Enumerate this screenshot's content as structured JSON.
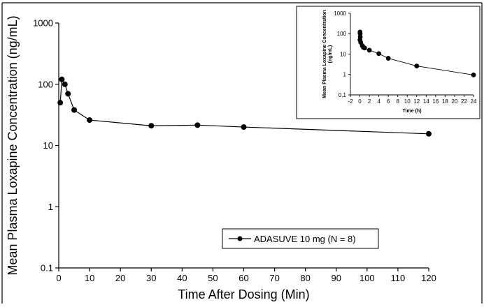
{
  "chart_data": [
    {
      "type": "line",
      "title": "",
      "xlabel": "Time After Dosing (Min)",
      "ylabel": "Mean Plasma Loxapine Concentration (ng/mL)",
      "xlim": [
        0,
        120
      ],
      "xticks": [
        0,
        10,
        20,
        30,
        40,
        50,
        60,
        70,
        80,
        90,
        100,
        110,
        120
      ],
      "ylim": [
        0.1,
        1000
      ],
      "yscale": "log",
      "yticks": [
        0.1,
        1,
        10,
        100,
        1000
      ],
      "ytick_labels": [
        "0.1",
        "1",
        "10",
        "100",
        "1000"
      ],
      "grid": false,
      "legend_position": "center-right",
      "series": [
        {
          "name": "ADASUVE 10 mg (N = 8)",
          "x": [
            0.5,
            1,
            2,
            3,
            5,
            10,
            30,
            45,
            60,
            120
          ],
          "y": [
            50,
            120,
            100,
            70,
            38,
            26,
            21,
            21.5,
            20,
            15.5
          ],
          "color": "#000000",
          "marker": "circle"
        }
      ]
    },
    {
      "type": "line",
      "title": "",
      "xlabel": "Time (h)",
      "ylabel": "Mean Plasma Loxapine Concentration (ng/mL)",
      "xlim": [
        -2,
        24
      ],
      "xticks": [
        -2,
        0,
        2,
        4,
        6,
        8,
        10,
        12,
        14,
        16,
        18,
        20,
        22,
        24
      ],
      "ylim": [
        0.1,
        1000
      ],
      "yscale": "log",
      "yticks": [
        0.1,
        1,
        10,
        100,
        1000
      ],
      "ytick_labels": [
        "0.1",
        "1",
        "10",
        "100",
        "1000"
      ],
      "grid": false,
      "series": [
        {
          "name": "",
          "x": [
            0.017,
            0.033,
            0.05,
            0.083,
            0.167,
            0.5,
            0.75,
            1,
            2,
            4,
            6,
            12,
            24
          ],
          "y": [
            50,
            120,
            100,
            70,
            38,
            26,
            21,
            20,
            15.5,
            10.5,
            6.2,
            2.6,
            0.95
          ],
          "color": "#000000",
          "marker": "circle"
        }
      ]
    }
  ]
}
